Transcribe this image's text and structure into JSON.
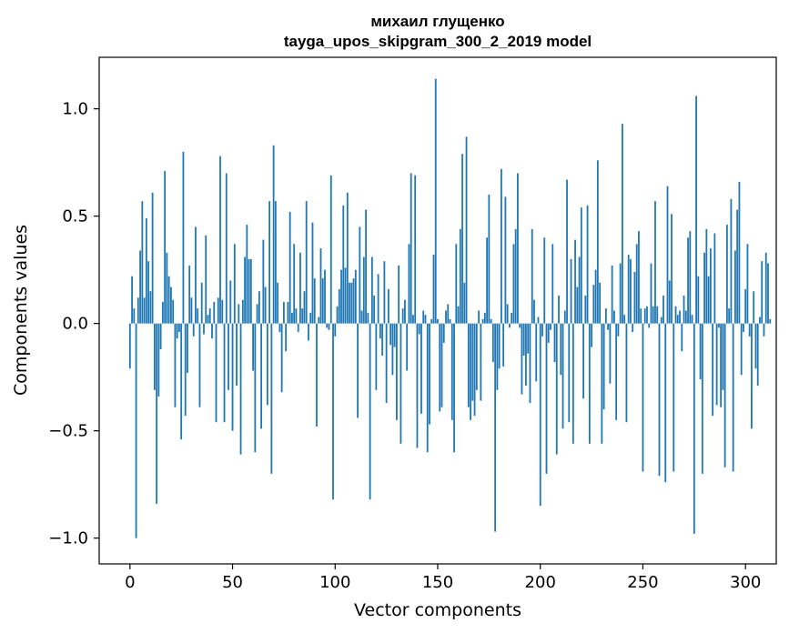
{
  "chart_data": {
    "type": "bar",
    "title_line1": "михаил глущенко",
    "title_line2": "tayga_upos_skipgram_300_2_2019 model",
    "xlabel": "Vector components",
    "ylabel": "Components values",
    "xlim": [
      -15,
      315
    ],
    "ylim": [
      -1.12,
      1.24
    ],
    "xticks": [
      0,
      50,
      100,
      150,
      200,
      250,
      300
    ],
    "xtick_labels": [
      "0",
      "50",
      "100",
      "150",
      "200",
      "250",
      "300"
    ],
    "yticks": [
      -1.0,
      -0.5,
      0.0,
      0.5,
      1.0
    ],
    "ytick_labels": [
      "−1.0",
      "−0.5",
      "0.0",
      "0.5",
      "1.0"
    ],
    "bar_color": "#1f77b4",
    "values": [
      -0.21,
      0.22,
      0.07,
      -1.0,
      0.12,
      0.34,
      0.57,
      0.12,
      0.49,
      0.29,
      0.15,
      0.61,
      -0.31,
      -0.84,
      -0.34,
      -0.12,
      0.1,
      0.71,
      0.33,
      0.22,
      0.17,
      0.11,
      -0.39,
      -0.07,
      -0.04,
      -0.54,
      0.8,
      -0.43,
      -0.23,
      0.27,
      0.12,
      -0.06,
      0.45,
      0.07,
      -0.39,
      0.19,
      -0.05,
      0.41,
      0.04,
      0.07,
      -0.07,
      0.1,
      -0.46,
      0.12,
      0.78,
      0.11,
      -0.46,
      0.7,
      -0.31,
      0.2,
      -0.5,
      0.37,
      -0.29,
      0.09,
      -0.61,
      0.11,
      0.31,
      0.46,
      0.3,
      0.3,
      -0.22,
      -0.6,
      0.09,
      0.15,
      -0.49,
      0.39,
      0.17,
      -0.38,
      0.57,
      -0.7,
      0.83,
      0.57,
      0.19,
      -0.04,
      -0.32,
      0.1,
      -0.13,
      0.1,
      0.52,
      0.05,
      0.37,
      0.07,
      -0.04,
      0.33,
      0.07,
      0.15,
      0.57,
      -0.08,
      0.05,
      0.47,
      0.21,
      -0.48,
      0.03,
      0.35,
      0.21,
      0.25,
      -0.02,
      -0.03,
      0.69,
      -0.82,
      -0.06,
      0.08,
      0.16,
      0.25,
      0.55,
      0.26,
      0.61,
      0.19,
      0.19,
      0.21,
      0.25,
      -0.44,
      0.45,
      0.06,
      0.31,
      0.53,
      0.05,
      -0.82,
      0.31,
      0.13,
      -0.31,
      0.23,
      -0.07,
      -0.15,
      0.29,
      -0.37,
      0.16,
      -0.1,
      -0.24,
      -0.11,
      -0.45,
      0.27,
      -0.56,
      0.07,
      0.11,
      -0.22,
      0.37,
      0.7,
      0.04,
      0.69,
      -0.58,
      -0.05,
      -0.42,
      0.06,
      0.04,
      -0.6,
      -0.47,
      0.02,
      0.32,
      1.14,
      0.02,
      -0.41,
      -0.39,
      -0.09,
      0.06,
      0.09,
      0.02,
      -0.45,
      -0.6,
      0.37,
      0.08,
      0.44,
      0.79,
      0.19,
      0.87,
      -0.39,
      -0.45,
      -0.36,
      -0.43,
      -0.31,
      0.06,
      -0.36,
      0.02,
      0.05,
      0.4,
      0.6,
      0.02,
      -0.18,
      -0.97,
      -0.31,
      -0.21,
      0.72,
      -0.2,
      0.59,
      0.09,
      -0.02,
      0.05,
      0.37,
      0.44,
      0.7,
      -0.02,
      -0.33,
      -0.15,
      -0.29,
      -0.14,
      -0.37,
      0.44,
      0.11,
      -0.27,
      0.03,
      -0.85,
      -0.06,
      0.4,
      -0.7,
      -0.09,
      -0.03,
      0.37,
      -0.18,
      -0.61,
      0.13,
      -0.24,
      -0.49,
      0.06,
      0.67,
      -0.46,
      0.3,
      -0.56,
      0.39,
      0.17,
      0.31,
      0.54,
      -0.35,
      0.13,
      0.55,
      -0.56,
      -0.11,
      0.18,
      0.25,
      0.76,
      0.19,
      -0.56,
      -0.4,
      0.07,
      -0.03,
      -0.28,
      0.27,
      0.06,
      -0.45,
      -0.06,
      0.28,
      0.93,
      0.04,
      -0.46,
      0.32,
      0.3,
      -0.04,
      0.24,
      0.37,
      0.43,
      0.07,
      -0.69,
      0.07,
      0.08,
      -0.02,
      0.28,
      0.08,
      0.57,
      0.08,
      -0.71,
      0.03,
      0.13,
      -0.74,
      0.64,
      0.2,
      0.51,
      -0.69,
      0.08,
      0.04,
      0.06,
      -0.13,
      0.13,
      0.06,
      0.4,
      0.43,
      0.04,
      -0.98,
      1.06,
      0.22,
      -0.26,
      -0.7,
      0.33,
      0.44,
      0.22,
      0.35,
      -0.43,
      0.42,
      -0.38,
      -0.02,
      -0.39,
      -0.31,
      -0.67,
      0.46,
      0.07,
      0.58,
      -0.69,
      0.34,
      0.53,
      0.66,
      -0.24,
      -0.04,
      0.16,
      0.37,
      -0.06,
      -0.49,
      0.15,
      -0.21,
      -0.29,
      0.03,
      0.29,
      -0.06,
      0.33,
      0.28,
      0.02
    ]
  }
}
